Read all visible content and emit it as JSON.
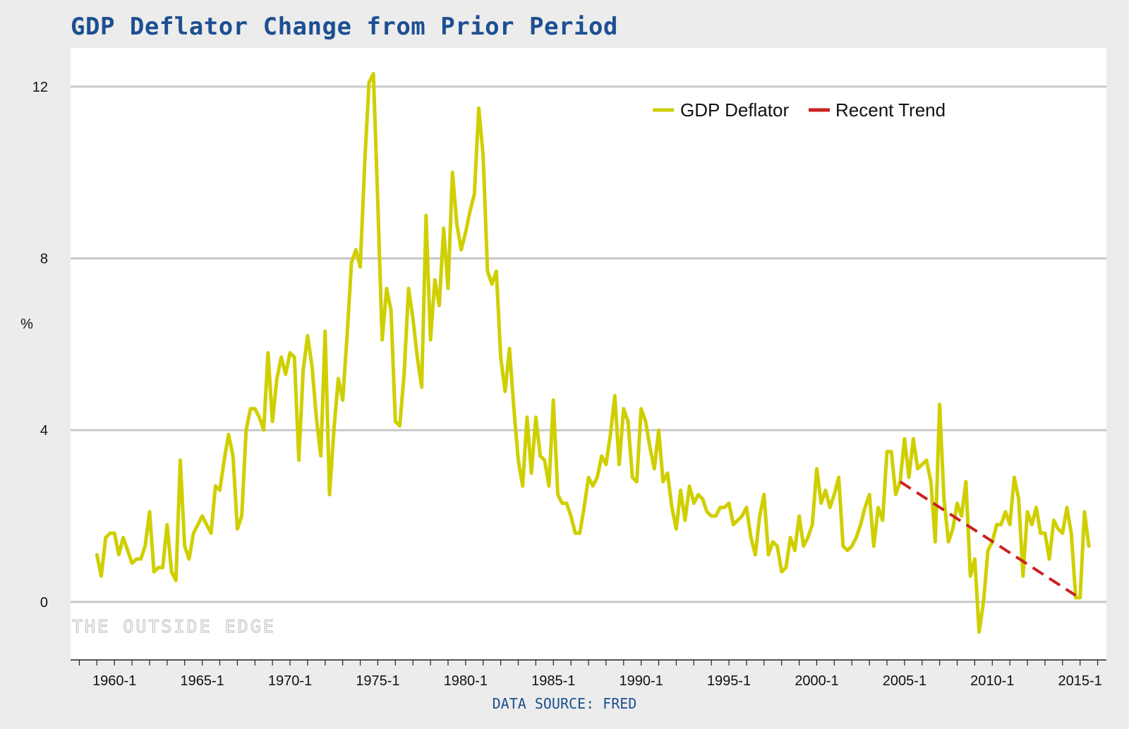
{
  "title": "GDP Deflator Change from Prior Period",
  "source": "DATA SOURCE: FRED",
  "watermark": "THE OUTSIDE EDGE",
  "chart_data": {
    "type": "line",
    "title": "GDP Deflator Change from Prior Period",
    "xlabel": "",
    "ylabel": "%",
    "ylim": [
      -1.35,
      12.9
    ],
    "yticks": [
      0,
      4,
      8,
      12
    ],
    "xticks": [
      "1960-1",
      "1965-1",
      "1970-1",
      "1975-1",
      "1980-1",
      "1985-1",
      "1990-1",
      "1995-1",
      "2000-1",
      "2005-1",
      "2010-1",
      "2015-1"
    ],
    "grid": "horizontal",
    "legend_position": "top-right",
    "colors": {
      "gdp": "#cfcf00",
      "trend": "#cc2222",
      "grid": "#c8c8c8",
      "title": "#1d4f91"
    },
    "series": [
      {
        "name": "GDP Deflator",
        "style": "solid",
        "x": [
          1959.0,
          1959.25,
          1959.5,
          1959.75,
          1960.0,
          1960.25,
          1960.5,
          1960.75,
          1961.0,
          1961.25,
          1961.5,
          1961.75,
          1962.0,
          1962.25,
          1962.5,
          1962.75,
          1963.0,
          1963.25,
          1963.5,
          1963.75,
          1964.0,
          1964.25,
          1964.5,
          1964.75,
          1965.0,
          1965.25,
          1965.5,
          1965.75,
          1966.0,
          1966.25,
          1966.5,
          1966.75,
          1967.0,
          1967.25,
          1967.5,
          1967.75,
          1968.0,
          1968.25,
          1968.5,
          1968.75,
          1969.0,
          1969.25,
          1969.5,
          1969.75,
          1970.0,
          1970.25,
          1970.5,
          1970.75,
          1971.0,
          1971.25,
          1971.5,
          1971.75,
          1972.0,
          1972.25,
          1972.5,
          1972.75,
          1973.0,
          1973.25,
          1973.5,
          1973.75,
          1974.0,
          1974.25,
          1974.5,
          1974.75,
          1975.0,
          1975.25,
          1975.5,
          1975.75,
          1976.0,
          1976.25,
          1976.5,
          1976.75,
          1977.0,
          1977.25,
          1977.5,
          1977.75,
          1978.0,
          1978.25,
          1978.5,
          1978.75,
          1979.0,
          1979.25,
          1979.5,
          1979.75,
          1980.0,
          1980.25,
          1980.5,
          1980.75,
          1981.0,
          1981.25,
          1981.5,
          1981.75,
          1982.0,
          1982.25,
          1982.5,
          1982.75,
          1983.0,
          1983.25,
          1983.5,
          1983.75,
          1984.0,
          1984.25,
          1984.5,
          1984.75,
          1985.0,
          1985.25,
          1985.5,
          1985.75,
          1986.0,
          1986.25,
          1986.5,
          1986.75,
          1987.0,
          1987.25,
          1987.5,
          1987.75,
          1988.0,
          1988.25,
          1988.5,
          1988.75,
          1989.0,
          1989.25,
          1989.5,
          1989.75,
          1990.0,
          1990.25,
          1990.5,
          1990.75,
          1991.0,
          1991.25,
          1991.5,
          1991.75,
          1992.0,
          1992.25,
          1992.5,
          1992.75,
          1993.0,
          1993.25,
          1993.5,
          1993.75,
          1994.0,
          1994.25,
          1994.5,
          1994.75,
          1995.0,
          1995.25,
          1995.5,
          1995.75,
          1996.0,
          1996.25,
          1996.5,
          1996.75,
          1997.0,
          1997.25,
          1997.5,
          1997.75,
          1998.0,
          1998.25,
          1998.5,
          1998.75,
          1999.0,
          1999.25,
          1999.5,
          1999.75,
          2000.0,
          2000.25,
          2000.5,
          2000.75,
          2001.0,
          2001.25,
          2001.5,
          2001.75,
          2002.0,
          2002.25,
          2002.5,
          2002.75,
          2003.0,
          2003.25,
          2003.5,
          2003.75,
          2004.0,
          2004.25,
          2004.5,
          2004.75,
          2005.0,
          2005.25,
          2005.5,
          2005.75,
          2006.0,
          2006.25,
          2006.5,
          2006.75,
          2007.0,
          2007.25,
          2007.5,
          2007.75,
          2008.0,
          2008.25,
          2008.5,
          2008.75,
          2009.0,
          2009.25,
          2009.5,
          2009.75,
          2010.0,
          2010.25,
          2010.5,
          2010.75,
          2011.0,
          2011.25,
          2011.5,
          2011.75,
          2012.0,
          2012.25,
          2012.5,
          2012.75,
          2013.0,
          2013.25,
          2013.5,
          2013.75,
          2014.0,
          2014.25,
          2014.5,
          2014.75,
          2015.0,
          2015.25,
          2015.5
        ],
        "values": [
          1.1,
          0.6,
          1.5,
          1.6,
          1.6,
          1.1,
          1.5,
          1.2,
          0.9,
          1.0,
          1.0,
          1.3,
          2.1,
          0.7,
          0.8,
          0.8,
          1.8,
          0.7,
          0.5,
          3.3,
          1.3,
          1.0,
          1.6,
          1.8,
          2.0,
          1.8,
          1.6,
          2.7,
          2.6,
          3.3,
          3.9,
          3.4,
          1.7,
          2.0,
          4.0,
          4.5,
          4.5,
          4.3,
          4.0,
          5.8,
          4.2,
          5.2,
          5.7,
          5.3,
          5.8,
          5.7,
          3.3,
          5.4,
          6.2,
          5.5,
          4.3,
          3.4,
          6.3,
          2.5,
          4.0,
          5.2,
          4.7,
          6.2,
          7.9,
          8.2,
          7.8,
          10.2,
          12.1,
          12.3,
          9.3,
          6.1,
          7.3,
          6.8,
          4.2,
          4.1,
          5.3,
          7.3,
          6.6,
          5.7,
          5.0,
          9.0,
          6.1,
          7.5,
          6.9,
          8.7,
          7.3,
          10.0,
          8.8,
          8.2,
          8.6,
          9.1,
          9.5,
          11.5,
          10.4,
          7.7,
          7.4,
          7.7,
          5.7,
          4.9,
          5.9,
          4.5,
          3.3,
          2.7,
          4.3,
          3.0,
          4.3,
          3.4,
          3.3,
          2.7,
          4.7,
          2.5,
          2.3,
          2.3,
          2.0,
          1.6,
          1.6,
          2.2,
          2.9,
          2.7,
          2.9,
          3.4,
          3.2,
          3.9,
          4.8,
          3.2,
          4.5,
          4.2,
          2.9,
          2.8,
          4.5,
          4.2,
          3.6,
          3.1,
          4.0,
          2.8,
          3.0,
          2.2,
          1.7,
          2.6,
          1.9,
          2.7,
          2.3,
          2.5,
          2.4,
          2.1,
          2.0,
          2.0,
          2.2,
          2.2,
          2.3,
          1.8,
          1.9,
          2.0,
          2.2,
          1.5,
          1.1,
          2.0,
          2.5,
          1.1,
          1.4,
          1.3,
          0.7,
          0.8,
          1.5,
          1.2,
          2.0,
          1.3,
          1.5,
          1.8,
          3.1,
          2.3,
          2.6,
          2.2,
          2.5,
          2.9,
          1.3,
          1.2,
          1.3,
          1.5,
          1.8,
          2.2,
          2.5,
          1.3,
          2.2,
          1.9,
          3.5,
          3.5,
          2.5,
          2.8,
          3.8,
          2.9,
          3.8,
          3.1,
          3.2,
          3.3,
          2.8,
          1.4,
          4.6,
          2.4,
          1.4,
          1.7,
          2.3,
          2.0,
          2.8,
          0.6,
          1.0,
          -0.7,
          0.0,
          1.2,
          1.4,
          1.8,
          1.8,
          2.1,
          1.8,
          2.9,
          2.4,
          0.6,
          2.1,
          1.8,
          2.2,
          1.6,
          1.6,
          1.0,
          1.9,
          1.7,
          1.6,
          2.2,
          1.6,
          0.1,
          0.1,
          2.1,
          1.3
        ]
      },
      {
        "name": "Recent Trend",
        "style": "dashed",
        "x": [
          2004.75,
          2014.75
        ],
        "values": [
          2.8,
          0.15
        ]
      }
    ]
  }
}
